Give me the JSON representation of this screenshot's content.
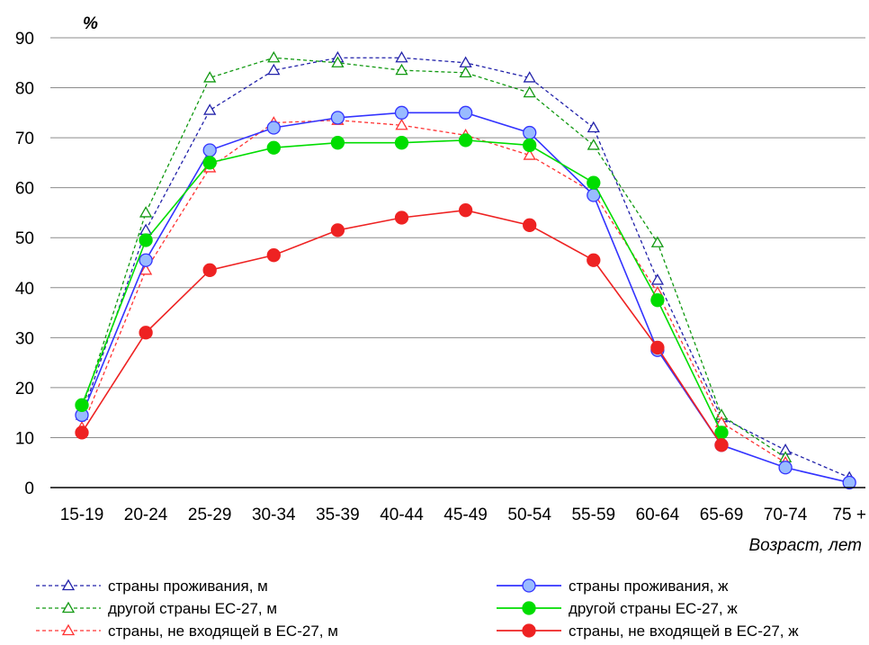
{
  "chart_data": {
    "type": "line",
    "ylabel": "%",
    "xlabel": "Возраст, лет",
    "ylim": [
      0,
      90
    ],
    "yticks": [
      0,
      10,
      20,
      30,
      40,
      50,
      60,
      70,
      80,
      90
    ],
    "grid": true,
    "legend_position": "bottom",
    "categories": [
      "15-19",
      "20-24",
      "25-29",
      "30-34",
      "35-39",
      "40-44",
      "45-49",
      "50-54",
      "55-59",
      "60-64",
      "65-69",
      "70-74",
      "75 +"
    ],
    "series": [
      {
        "name": "страны проживания, м",
        "color": "#2222aa",
        "dash": true,
        "marker": "triangle",
        "values": [
          14.5,
          51.5,
          75.5,
          83.5,
          86.0,
          86.0,
          85.0,
          82.0,
          72.0,
          41.5,
          14.0,
          7.5,
          2.0
        ]
      },
      {
        "name": "другой страны ЕС-27,  м",
        "color": "#119911",
        "dash": true,
        "marker": "triangle",
        "values": [
          15.5,
          55.0,
          82.0,
          86.0,
          85.0,
          83.5,
          83.0,
          79.0,
          68.5,
          49.0,
          14.5,
          6.0,
          null
        ]
      },
      {
        "name": "страны, не входящей в ЕС-27,  м",
        "color": "#ff3333",
        "dash": true,
        "marker": "triangle",
        "values": [
          12.0,
          43.5,
          64.0,
          73.0,
          73.5,
          72.5,
          70.5,
          66.5,
          59.0,
          39.0,
          13.0,
          5.0,
          null
        ]
      },
      {
        "name": "страны проживания, ж",
        "color": "#3333ff",
        "dash": false,
        "marker": "circle",
        "values": [
          14.5,
          45.5,
          67.5,
          72.0,
          74.0,
          75.0,
          75.0,
          71.0,
          58.5,
          27.5,
          8.5,
          4.0,
          1.0
        ]
      },
      {
        "name": "другой страны ЕС-27,  ж",
        "color": "#00dd00",
        "dash": false,
        "marker": "circle",
        "values": [
          16.5,
          49.5,
          65.0,
          68.0,
          69.0,
          69.0,
          69.5,
          68.5,
          61.0,
          37.5,
          11.0,
          null,
          null
        ]
      },
      {
        "name": "страны, не входящей в ЕС-27,  ж",
        "color": "#ee2222",
        "dash": false,
        "marker": "circle",
        "values": [
          11.0,
          31.0,
          43.5,
          46.5,
          51.5,
          54.0,
          55.5,
          52.5,
          45.5,
          28.0,
          8.5,
          null,
          null
        ]
      }
    ]
  }
}
